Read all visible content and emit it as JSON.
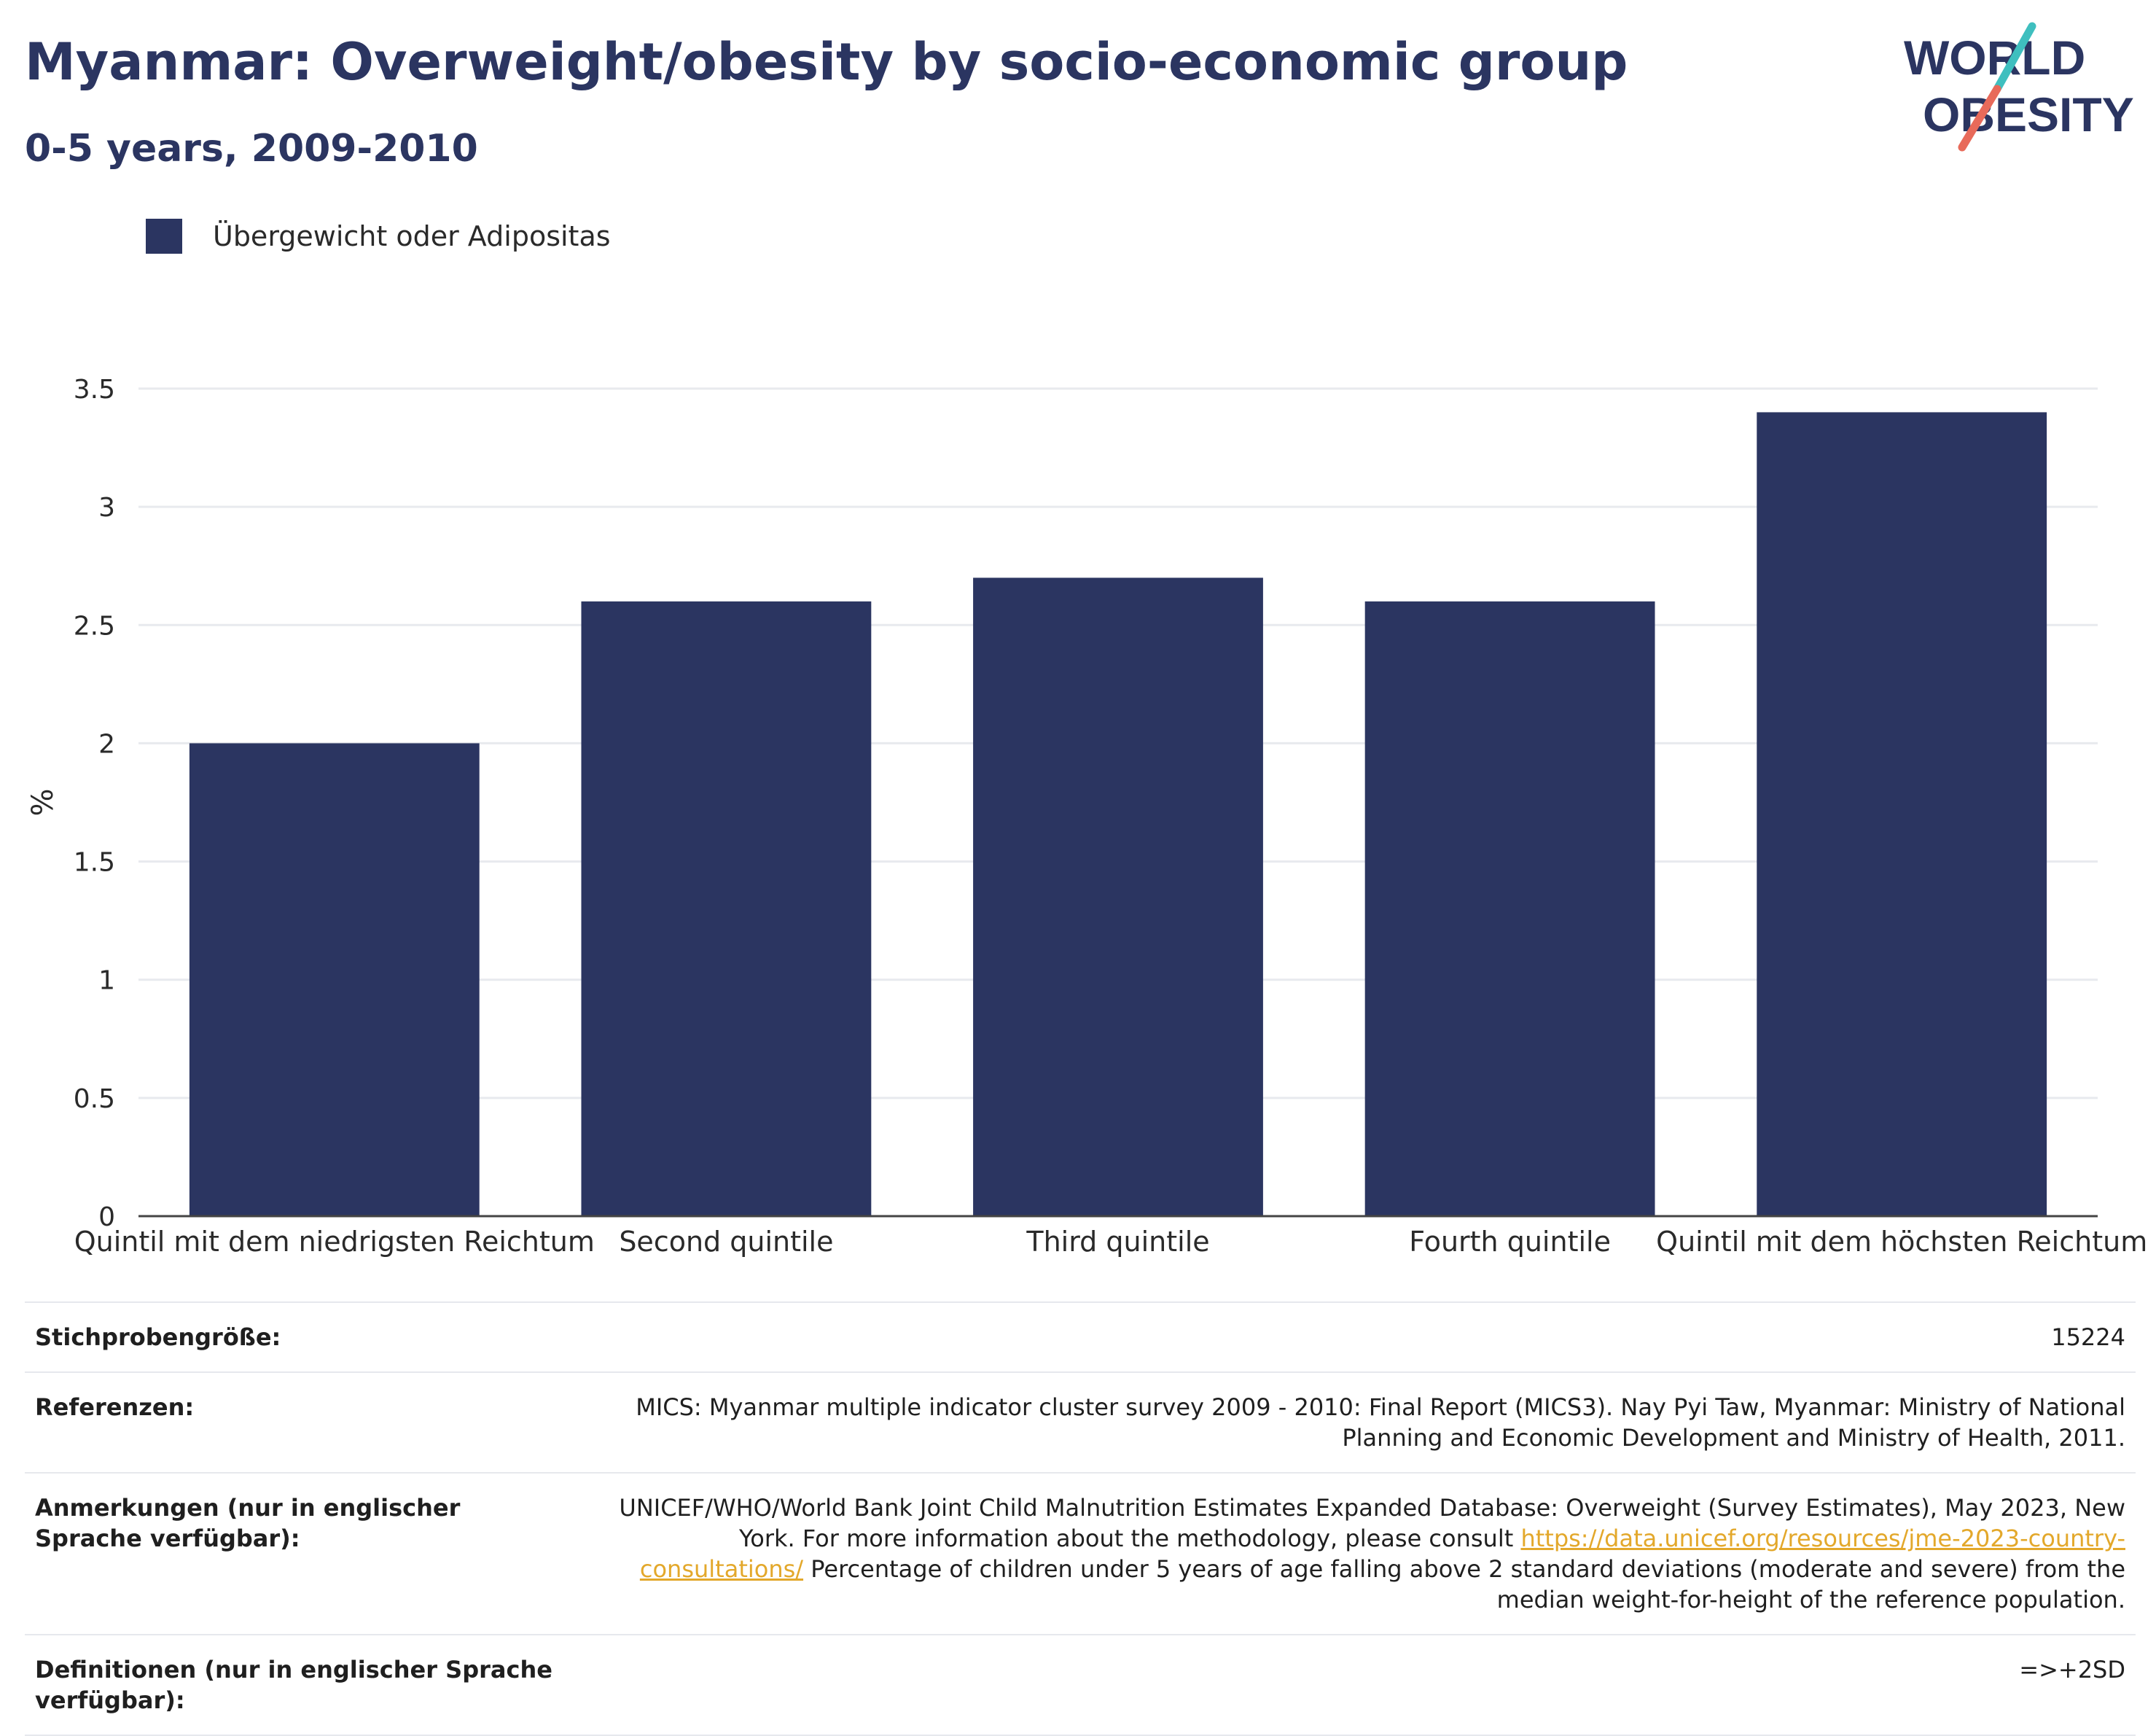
{
  "header": {
    "title": "Myanmar: Overweight/obesity by socio-economic group",
    "subtitle": "0-5 years, 2009-2010"
  },
  "logo": {
    "line1": "WORLD",
    "line2": "OBESITY",
    "icon": "world-obesity-logo",
    "colors": {
      "text": "#2b3561",
      "slash_top": "#3fbfbf",
      "slash_bottom": "#e86a5a"
    }
  },
  "legend": {
    "label": "Übergewicht oder Adipositas"
  },
  "chart_data": {
    "type": "bar",
    "categories": [
      "Quintil mit dem niedrigsten Reichtum",
      "Second quintile",
      "Third quintile",
      "Fourth quintile",
      "Quintil mit dem höchsten Reichtum"
    ],
    "series": [
      {
        "name": "Übergewicht oder Adipositas",
        "values": [
          2.0,
          2.6,
          2.7,
          2.6,
          3.4
        ],
        "color": "#2b3561"
      }
    ],
    "ylabel": "%",
    "ylim": [
      0,
      3.5
    ],
    "yticks": [
      "0",
      "0.5",
      "1",
      "1.5",
      "2",
      "2.5",
      "3",
      "3.5"
    ],
    "grid": true,
    "legend_position": "top-left"
  },
  "info": {
    "sample_size": {
      "label": "Stichprobengröße:",
      "value": "15224"
    },
    "references": {
      "label": "Referenzen:",
      "value": "MICS: Myanmar multiple indicator cluster survey 2009 - 2010: Final Report (MICS3). Nay Pyi Taw, Myanmar: Ministry of National Planning and Economic Development and Ministry of Health, 2011."
    },
    "notes": {
      "label": "Anmerkungen (nur in englischer Sprache verfügbar):",
      "value_before": "UNICEF/WHO/World Bank Joint Child Malnutrition Estimates Expanded Database: Overweight (Survey Estimates), May 2023, New York. For more information about the methodology, please consult ",
      "link": "https://data.unicef.org/resources/jme-2023-country-consultations/",
      "value_after": " Percentage of children under 5 years of age falling above 2 standard deviations (moderate and severe) from the median weight-for-height of the reference population."
    },
    "definitions": {
      "label": "Definitionen (nur in englischer Sprache verfügbar):",
      "value": "=>+2SD"
    }
  }
}
